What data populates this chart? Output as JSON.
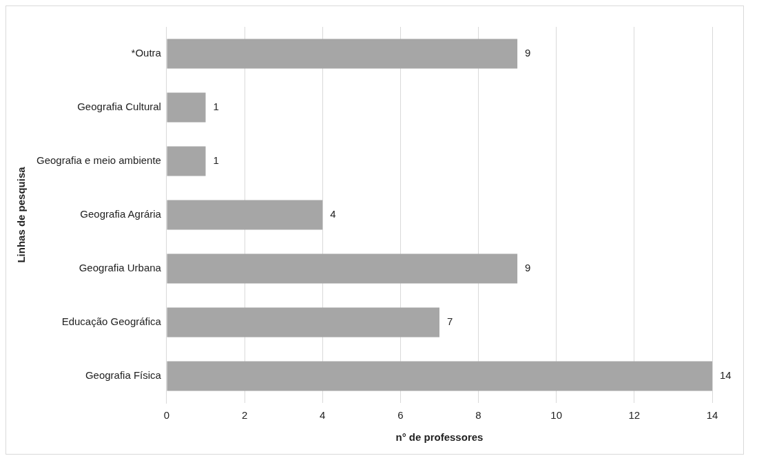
{
  "chart_data": {
    "type": "bar",
    "orientation": "horizontal",
    "xlabel": "n° de professores",
    "ylabel": "Linhas de pesquisa",
    "categories": [
      "*Outra",
      "Geografia Cultural",
      "Geografia e meio ambiente",
      "Geografia Agrária",
      "Geografia Urbana",
      "Educação Geográfica",
      "Geografia Física"
    ],
    "values": [
      9,
      1,
      1,
      4,
      9,
      7,
      14
    ],
    "color": "#a6a6a6",
    "xlim": [
      0,
      14
    ],
    "xticks": [
      0,
      2,
      4,
      6,
      8,
      10,
      12,
      14
    ],
    "grid": "x",
    "data_labels": true
  }
}
